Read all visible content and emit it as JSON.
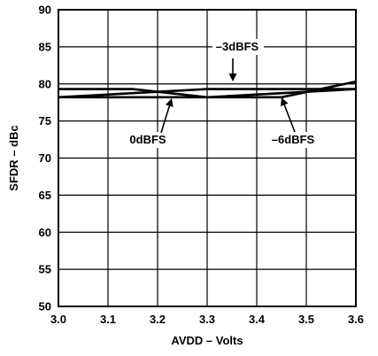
{
  "chart_data": {
    "type": "line",
    "title": "",
    "xlabel": "AVDD – Volts",
    "ylabel": "SFDR – dBc",
    "xlim": [
      3.0,
      3.6
    ],
    "ylim": [
      50,
      90
    ],
    "x_ticks": [
      "3.0",
      "3.1",
      "3.2",
      "3.3",
      "3.4",
      "3.5",
      "3.6"
    ],
    "y_ticks": [
      "50",
      "55",
      "60",
      "65",
      "70",
      "75",
      "80",
      "85",
      "90"
    ],
    "grid": true,
    "legend": "none",
    "series": [
      {
        "name": "0dBFS",
        "x": [
          3.0,
          3.15,
          3.3,
          3.6
        ],
        "y": [
          79.3,
          79.3,
          78.2,
          79.3
        ]
      },
      {
        "name": "–3dBFS",
        "x": [
          3.0,
          3.3,
          3.6
        ],
        "y": [
          78.2,
          79.3,
          79.3
        ]
      },
      {
        "name": "–6dBFS",
        "x": [
          3.0,
          3.45,
          3.6
        ],
        "y": [
          78.2,
          78.2,
          80.3
        ]
      }
    ],
    "annotations": [
      {
        "text": "–3dBFS",
        "series": 1
      },
      {
        "text": "0dBFS",
        "series": 0
      },
      {
        "text": "–6dBFS",
        "series": 2
      }
    ]
  }
}
